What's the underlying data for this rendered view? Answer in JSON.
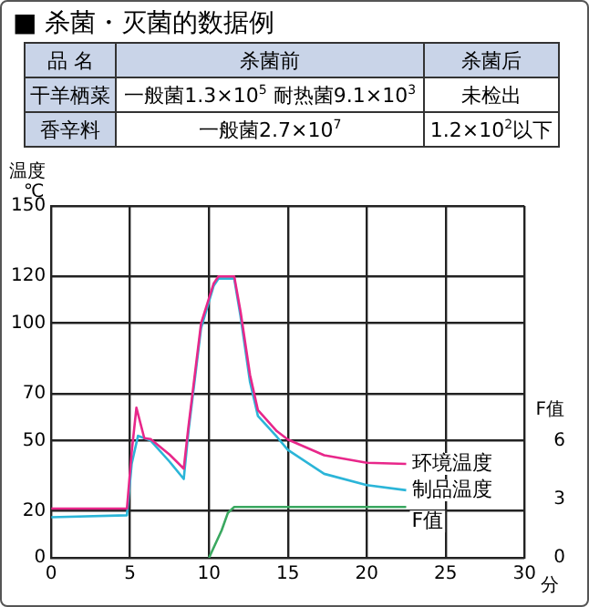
{
  "chart_data": {
    "type": "line",
    "title": "■ 杀菌・灭菌的数据例",
    "annotations": [
      "品 名",
      "杀菌前",
      "杀菌后",
      "干羊栖菜",
      "一般菌1.3×10$^{5}$ 耐热菌9.1×10$^{3}$",
      "未检出",
      "香辛料",
      "一般菌2.7×10$^{7}$",
      "1.2×10$^{2}$以下"
    ],
    "xlabel": "分",
    "ylabel": "温度 ℃",
    "y2label": "F值",
    "xlim": [
      0,
      30
    ],
    "xticks": [
      0,
      5,
      10,
      15,
      20,
      25,
      30
    ],
    "ylim": [
      0,
      150
    ],
    "yticks": [
      0,
      20,
      50,
      70,
      100,
      120,
      150
    ],
    "y2lim": [
      0,
      18
    ],
    "y2ticks": [
      0,
      3,
      6
    ],
    "grid": true,
    "legend": false,
    "marker": "none",
    "line_style": "solid",
    "series": [
      {
        "name": "环境温度",
        "color": "#e8278a",
        "x": [
          0,
          4.8,
          5.1,
          5.4,
          5.9,
          6.3,
          7.5,
          8.4,
          8.7,
          9.5,
          10.3,
          10.6,
          11.6,
          12.0,
          12.6,
          13.1,
          14.3,
          15,
          17.3,
          20,
          22.5
        ],
        "values": [
          21,
          21,
          45,
          64,
          51,
          50.6,
          44,
          38,
          56,
          100,
          117,
          120,
          120,
          105,
          78,
          63,
          54,
          50.4,
          43.7,
          40.5,
          40
        ]
      },
      {
        "name": "制品温度",
        "color": "#2bb5d8",
        "x": [
          0,
          4.8,
          5.1,
          5.5,
          5.9,
          6.3,
          7.5,
          8.4,
          8.7,
          9.5,
          10.3,
          10.6,
          11.6,
          12.0,
          12.6,
          13.1,
          14.3,
          15,
          17.3,
          20,
          22.5
        ],
        "values": [
          17.3,
          18.1,
          40,
          52,
          51,
          50,
          41,
          33.6,
          54,
          98,
          116,
          119,
          119,
          103,
          75,
          60.5,
          51.6,
          46,
          35.8,
          31,
          28.8
        ]
      },
      {
        "name": "F值",
        "color": "#3aa860",
        "axis": "y2",
        "x": [
          10,
          10.4,
          10.8,
          11.2,
          11.6,
          15,
          22.5
        ],
        "values": [
          0,
          0.7,
          1.4,
          2.3,
          2.6,
          2.6,
          2.6
        ]
      }
    ]
  }
}
